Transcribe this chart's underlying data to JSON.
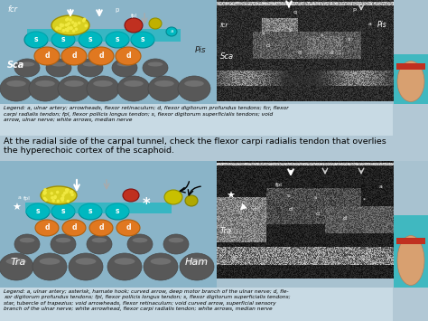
{
  "bg_color": "#b2c8d5",
  "panel_bg": "#a8c2d0",
  "diagram_bg": "#8ab4c8",
  "legend_bg": "#c8dae4",
  "bone_color": "#585858",
  "bone_dark": "#484848",
  "tendon_teal": "#00b8c0",
  "tendon_teal2": "#00d0d8",
  "yellow_fcr": "#d8d020",
  "yellow_dots": "#f0e840",
  "orange_prof": "#e07820",
  "red_fpl": "#c03020",
  "yellow_nerve": "#c8c020",
  "wrist_skin": "#d8a070",
  "wrist_band": "#c03020",
  "wrist_teal": "#40b8c0",
  "legend1": "Legend: a, ulnar artery; arrowheads, flexor retinaculum; d, flexor digitorum profundus tendons; fcr, flexor\ncarpi radialis tendon; fpl, flexor pollicis longus tendon; s, flexor digitorum superficialis tendons; void\narrow, ulnar nerve; white arrows, median nerve",
  "middle_text_line1": "At the radial side of the carpal tunnel, check the flexor carpi radialis tendon that overlies",
  "middle_text_line2": "the hyperechoic cortex of the scaphoid.",
  "legend2": "Legend: a, ulnar artery; asterisk, hamate hook; curved arrow, deep motor branch of the ulnar nerve; d, fle-\nxor digitorum profundus tendons; fpl, flexor pollicis longus tendon; s, flexor digitorum superficialis tendons;\nstar, tubercle of trapezius; void arrowheads, flexor retinaculum; void curved arrow, superficial sensory\nbranch of the ulnar nerve; white arrowhead, flexor carpi radialis tendon; white arrows, median nerve"
}
